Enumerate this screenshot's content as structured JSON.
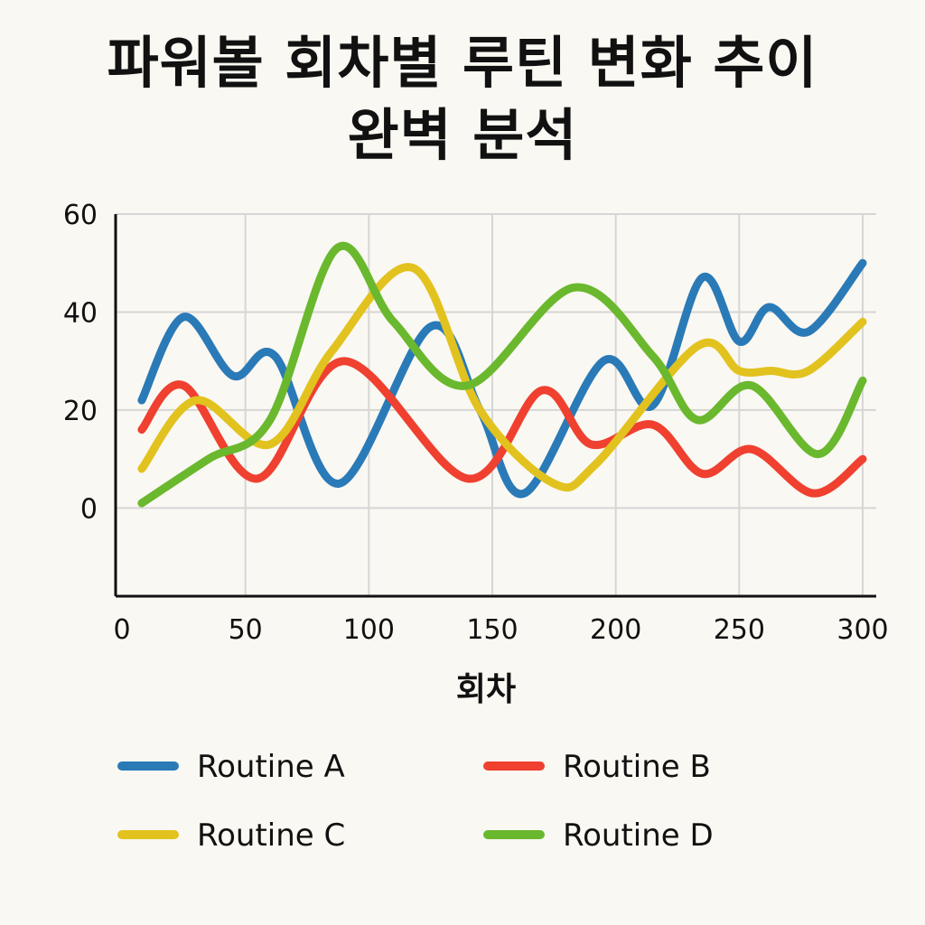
{
  "chart_data": {
    "type": "line",
    "title_lines": [
      "파워볼 회차별 루틴 변화 추이",
      "완벽 분석"
    ],
    "xlabel": "회차",
    "ylabel": "",
    "xlim": [
      0,
      300
    ],
    "ylim": [
      -18,
      60
    ],
    "xticks": [
      0,
      50,
      100,
      150,
      200,
      250,
      300
    ],
    "yticks": [
      0,
      20,
      40,
      60
    ],
    "grid": true,
    "legend_position": "bottom",
    "series": [
      {
        "name": "Routine A",
        "color": "#2a7ab8",
        "x": [
          8,
          25,
          45,
          62,
          88,
          125,
          145,
          163,
          195,
          215,
          235,
          250,
          262,
          278,
          300
        ],
        "y": [
          22,
          39,
          27,
          31,
          5,
          37,
          20,
          3,
          30,
          21,
          47,
          34,
          41,
          36,
          50
        ]
      },
      {
        "name": "Routine B",
        "color": "#ef4030",
        "x": [
          8,
          25,
          55,
          90,
          140,
          170,
          190,
          215,
          235,
          255,
          280,
          300
        ],
        "y": [
          16,
          25,
          6,
          30,
          6,
          24,
          13,
          17,
          7,
          12,
          3,
          10
        ]
      },
      {
        "name": "Routine C",
        "color": "#e2c21e",
        "x": [
          8,
          30,
          60,
          85,
          118,
          145,
          175,
          192,
          233,
          250,
          263,
          278,
          300
        ],
        "y": [
          8,
          22,
          13,
          32,
          49,
          20,
          5,
          9,
          33,
          28,
          28,
          28,
          38
        ]
      },
      {
        "name": "Routine D",
        "color": "#6ab82e",
        "x": [
          8,
          35,
          60,
          87,
          110,
          140,
          183,
          215,
          233,
          255,
          282,
          300
        ],
        "y": [
          1,
          10,
          18,
          53,
          38,
          25,
          45,
          31,
          18,
          25,
          11,
          26
        ]
      }
    ]
  }
}
